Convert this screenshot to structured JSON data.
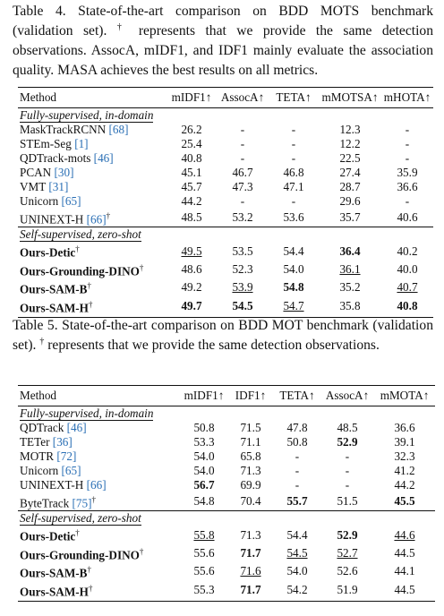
{
  "tables": [
    {
      "caption": [
        "Table 4. State-of-the-art comparison on BDD MOTS benchmark (validation set).",
        "†",
        "represents that we provide the same detection observations. AssocA, mIDF1, and IDF1 mainly evaluate the association quality. MASA achieves the best results on all metrics."
      ],
      "columns": [
        "Method",
        "mIDF1↑",
        "AssocA↑",
        "TETA↑",
        "mMOTSA↑",
        "mHOTA↑"
      ],
      "groups": [
        {
          "label": "Fully-supervised, in-domain",
          "bold_method": false,
          "rows": [
            {
              "method": "MaskTrackRCNN",
              "ref": "[68]",
              "values": [
                "26.2",
                "-",
                "-",
                "12.3",
                "-"
              ],
              "bold": [],
              "underline": []
            },
            {
              "method": "STEm-Seg",
              "ref": "[1]",
              "values": [
                "25.4",
                "-",
                "-",
                "12.2",
                "-"
              ],
              "bold": [],
              "underline": []
            },
            {
              "method": "QDTrack-mots",
              "ref": "[46]",
              "values": [
                "40.8",
                "-",
                "-",
                "22.5",
                "-"
              ],
              "bold": [],
              "underline": []
            },
            {
              "method": "PCAN",
              "ref": "[30]",
              "values": [
                "45.1",
                "46.7",
                "46.8",
                "27.4",
                "35.9"
              ],
              "bold": [],
              "underline": []
            },
            {
              "method": "VMT",
              "ref": "[31]",
              "values": [
                "45.7",
                "47.3",
                "47.1",
                "28.7",
                "36.6"
              ],
              "bold": [],
              "underline": []
            },
            {
              "method": "Unicorn",
              "ref": "[65]",
              "values": [
                "44.2",
                "-",
                "-",
                "29.6",
                "-"
              ],
              "bold": [],
              "underline": []
            },
            {
              "method": "UNINEXT-H",
              "ref": "[66]",
              "dagger": "†",
              "values": [
                "48.5",
                "53.2",
                "53.6",
                "35.7",
                "40.6"
              ],
              "bold": [],
              "underline": []
            }
          ]
        },
        {
          "label": "Self-supervised, zero-shot",
          "bold_method": true,
          "rows": [
            {
              "method": "Ours-Detic",
              "dagger": "†",
              "values": [
                "49.5",
                "53.5",
                "54.4",
                "36.4",
                "40.2"
              ],
              "bold": [
                3
              ],
              "underline": [
                0
              ]
            },
            {
              "method": "Ours-Grounding-DINO",
              "dagger": "†",
              "values": [
                "48.6",
                "52.3",
                "54.0",
                "36.1",
                "40.0"
              ],
              "bold": [],
              "underline": [
                3
              ]
            },
            {
              "method": "Ours-SAM-B",
              "dagger": "†",
              "values": [
                "49.2",
                "53.9",
                "54.8",
                "35.2",
                "40.7"
              ],
              "bold": [
                2
              ],
              "underline": [
                1,
                4
              ]
            },
            {
              "method": "Ours-SAM-H",
              "dagger": "†",
              "values": [
                "49.7",
                "54.5",
                "54.7",
                "35.8",
                "40.8"
              ],
              "bold": [
                0,
                1,
                4
              ],
              "underline": [
                2
              ]
            }
          ]
        }
      ]
    },
    {
      "caption": [
        "Table 5. State-of-the-art comparison on BDD MOT benchmark (validation set).",
        "†",
        "represents that we provide the same detection observations."
      ],
      "columns": [
        "Method",
        "mIDF1↑",
        "IDF1↑",
        "TETA↑",
        "AssocA↑",
        "mMOTA↑"
      ],
      "groups": [
        {
          "label": "Fully-supervised, in-domain",
          "bold_method": false,
          "rows": [
            {
              "method": "QDTrack",
              "ref": "[46]",
              "values": [
                "50.8",
                "71.5",
                "47.8",
                "48.5",
                "36.6"
              ],
              "bold": [],
              "underline": []
            },
            {
              "method": "TETer",
              "ref": "[36]",
              "values": [
                "53.3",
                "71.1",
                "50.8",
                "52.9",
                "39.1"
              ],
              "bold": [
                3
              ],
              "underline": []
            },
            {
              "method": "MOTR",
              "ref": "[72]",
              "values": [
                "54.0",
                "65.8",
                "-",
                "-",
                "32.3"
              ],
              "bold": [],
              "underline": []
            },
            {
              "method": "Unicorn",
              "ref": "[65]",
              "values": [
                "54.0",
                "71.3",
                "-",
                "-",
                "41.2"
              ],
              "bold": [],
              "underline": []
            },
            {
              "method": "UNINEXT-H",
              "ref": "[66]",
              "values": [
                "56.7",
                "69.9",
                "-",
                "-",
                "44.2"
              ],
              "bold": [
                0
              ],
              "underline": []
            },
            {
              "method": "ByteTrack",
              "ref": "[75]",
              "dagger": "†",
              "values": [
                "54.8",
                "70.4",
                "55.7",
                "51.5",
                "45.5"
              ],
              "bold": [
                2,
                4
              ],
              "underline": []
            }
          ]
        },
        {
          "label": "Self-supervised, zero-shot",
          "bold_method": true,
          "rows": [
            {
              "method": "Ours-Detic",
              "dagger": "†",
              "values": [
                "55.8",
                "71.3",
                "54.4",
                "52.9",
                "44.6"
              ],
              "bold": [
                3
              ],
              "underline": [
                0,
                4
              ]
            },
            {
              "method": "Ours-Grounding-DINO",
              "dagger": "†",
              "values": [
                "55.6",
                "71.7",
                "54.5",
                "52.7",
                "44.5"
              ],
              "bold": [
                1
              ],
              "underline": [
                2,
                3
              ]
            },
            {
              "method": "Ours-SAM-B",
              "dagger": "†",
              "values": [
                "55.6",
                "71.6",
                "54.0",
                "52.6",
                "44.1"
              ],
              "bold": [],
              "underline": [
                1
              ]
            },
            {
              "method": "Ours-SAM-H",
              "dagger": "†",
              "values": [
                "55.3",
                "71.7",
                "54.2",
                "51.9",
                "44.5"
              ],
              "bold": [
                1
              ],
              "underline": []
            }
          ]
        }
      ]
    }
  ]
}
